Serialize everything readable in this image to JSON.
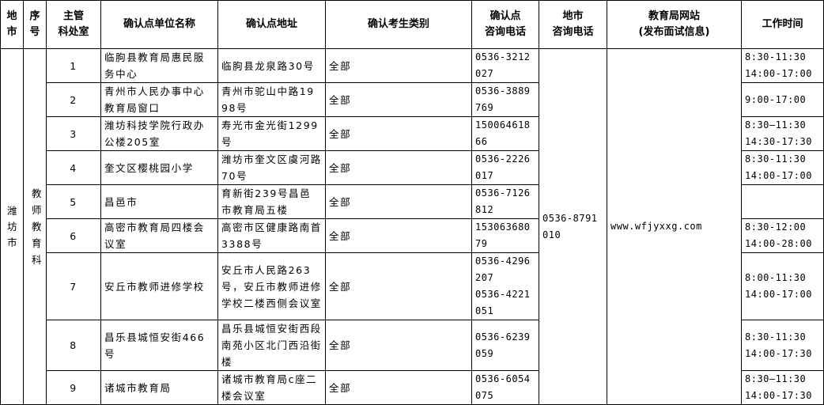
{
  "headers": [
    "地市",
    "序号",
    "主管科处室",
    "确认点单位名称",
    "确认点地址",
    "确认考生类别",
    "确认点咨询电话",
    "地市咨询电话",
    "教育局网站(发布面试信息)",
    "工作时间"
  ],
  "header_lines": {
    "city": [
      "地",
      "市"
    ],
    "seq": [
      "序",
      "号"
    ],
    "dept": [
      "主管",
      "科处室"
    ],
    "name": [
      "确认点单位名称"
    ],
    "addr": [
      "确认点地址"
    ],
    "cat": [
      "确认考生类别"
    ],
    "phone": [
      "确认点",
      "咨询电话"
    ],
    "cityphone": [
      "地市",
      "咨询电话"
    ],
    "site": [
      "教育局网站",
      "(发布面试信息)"
    ],
    "hours": [
      "工作时间"
    ]
  },
  "city": "潍坊市",
  "dept": "教师教育科",
  "city_phone": "0536-8791010",
  "website": "www.wfjyxxg.com",
  "rows": [
    {
      "seq": "1",
      "name": "临朐县教育局惠民服务中心",
      "addr": "临朐县龙泉路30号",
      "category": "全部",
      "phone": "0536-3212027",
      "hours": "8:30-11:30\n14:00-17:00"
    },
    {
      "seq": "2",
      "name": "青州市人民办事中心教育局窗口",
      "addr": "青州市驼山中路1998号",
      "category": "全部",
      "phone": "0536-3889769",
      "hours": "9:00-17:00"
    },
    {
      "seq": "3",
      "name": "潍坊科技学院行政办公楼205室",
      "addr": "寿光市金光街1299号",
      "category": "全部",
      "phone": "15006461866",
      "hours": "8:30—11:30\n14:30-17:30"
    },
    {
      "seq": "4",
      "name": "奎文区樱桃园小学",
      "addr": "潍坊市奎文区虞河路70号",
      "category": "全部",
      "phone": "0536-2226017",
      "hours": "8:30-11:30\n14:00-17:00"
    },
    {
      "seq": "5",
      "name": "昌邑市",
      "addr": "育新街239号昌邑市教育局五楼",
      "category": "全部",
      "phone": "0536-7126812",
      "hours": ""
    },
    {
      "seq": "6",
      "name": "高密市教育局四楼会议室",
      "addr": "高密市区健康路南首3388号",
      "category": "全部",
      "phone": "15306368079",
      "hours": "8:30-12:00\n14:00-28:00"
    },
    {
      "seq": "7",
      "name": "安丘市教师进修学校",
      "addr": "安丘市人民路263号，安丘市教师进修学校二楼西侧会议室",
      "category": "全部",
      "phone": "0536-4296207\n0536-4221051",
      "hours": "8:00-11:30\n14:00-17:00"
    },
    {
      "seq": "8",
      "name": "昌乐县城恒安街466号",
      "addr": "昌乐县城恒安街西段南苑小区北门西沿街楼",
      "category": "全部",
      "phone": "0536-6239059",
      "hours": "8:30-11:30\n14:00-17:30"
    },
    {
      "seq": "9",
      "name": "诸城市教育局",
      "addr": "诸城市教育局c座二楼会议室",
      "category": "全部",
      "phone": "0536-6054075",
      "hours": "8:30—11:30\n14:00-17:30"
    }
  ]
}
